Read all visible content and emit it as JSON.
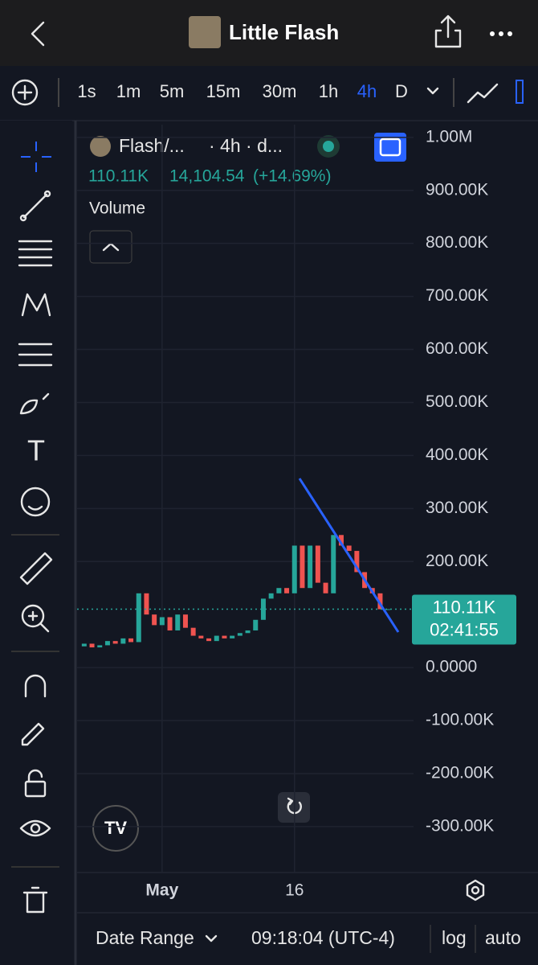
{
  "header": {
    "title": "Little Flash"
  },
  "timeframes": [
    "1s",
    "1m",
    "5m",
    "15m",
    "30m",
    "1h",
    "4h",
    "D"
  ],
  "legend": {
    "symbol": "Flash/...",
    "interval": "· 4h · d...",
    "price": "110.11K",
    "change": "14,104.54",
    "change_pct": "(+14.69%)",
    "study": "Volume"
  },
  "price_tag": {
    "price": "110.11K",
    "countdown": "02:41:55"
  },
  "footer": {
    "date_range": "Date Range",
    "time": "09:18:04 (UTC-4)",
    "log": "log",
    "auto": "auto"
  },
  "chart_data": {
    "type": "candlestick",
    "categories": [
      null,
      null,
      null,
      null,
      null,
      null,
      null,
      null,
      null,
      null,
      "May",
      null,
      null,
      null,
      null,
      null,
      null,
      null,
      null,
      null,
      null,
      null,
      null,
      null,
      null,
      null,
      null,
      "16",
      null,
      null,
      null,
      null,
      null,
      null,
      null,
      null,
      null,
      null,
      null,
      null
    ],
    "open": [
      40000,
      45000,
      38000,
      42000,
      50000,
      45000,
      55000,
      48000,
      140000,
      100000,
      80000,
      95000,
      70000,
      100000,
      75000,
      60000,
      55000,
      50000,
      60000,
      55000,
      60000,
      65000,
      70000,
      90000,
      130000,
      140000,
      150000,
      140000,
      230000,
      150000,
      230000,
      160000,
      140000,
      250000,
      230000,
      220000,
      180000,
      150000,
      140000,
      110000
    ],
    "close": [
      45000,
      38000,
      42000,
      50000,
      45000,
      55000,
      48000,
      140000,
      100000,
      80000,
      95000,
      70000,
      100000,
      75000,
      60000,
      55000,
      50000,
      60000,
      55000,
      60000,
      65000,
      70000,
      90000,
      130000,
      140000,
      150000,
      140000,
      230000,
      150000,
      230000,
      160000,
      140000,
      250000,
      230000,
      220000,
      180000,
      150000,
      140000,
      110000,
      110110
    ],
    "up_color": "#26a69a",
    "down_color": "#ef5350",
    "last_price": 110110,
    "ylim": [
      -376000,
      1024000
    ],
    "yticks": [
      {
        "value": 1000000,
        "label": "1.00M"
      },
      {
        "value": 900000,
        "label": "900.00K"
      },
      {
        "value": 800000,
        "label": "800.00K"
      },
      {
        "value": 700000,
        "label": "700.00K"
      },
      {
        "value": 600000,
        "label": "600.00K"
      },
      {
        "value": 500000,
        "label": "500.00K"
      },
      {
        "value": 400000,
        "label": "400.00K"
      },
      {
        "value": 300000,
        "label": "300.00K"
      },
      {
        "value": 200000,
        "label": "200.00K"
      },
      {
        "value": 0,
        "label": "0.0000"
      },
      {
        "value": -100000,
        "label": "-100.00K"
      },
      {
        "value": -200000,
        "label": "-200.00K"
      },
      {
        "value": -300000,
        "label": "-300.00K"
      }
    ],
    "grid": true
  }
}
